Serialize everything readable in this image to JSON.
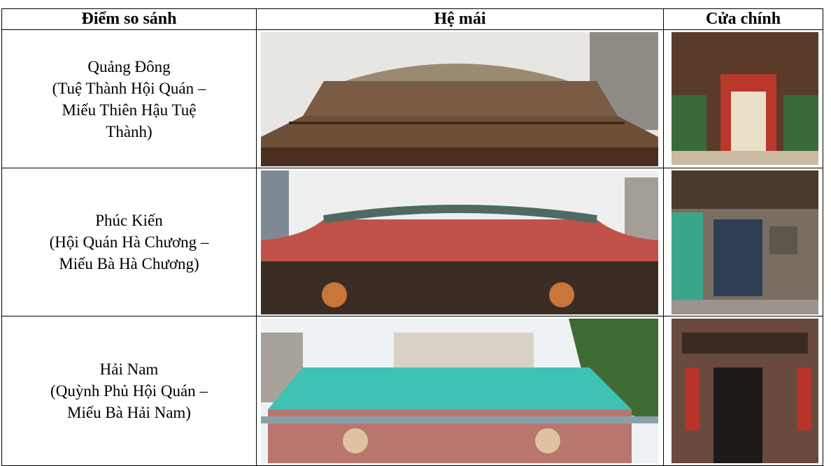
{
  "table": {
    "header": [
      "Điểm so sánh",
      "Hệ mái",
      "Cửa chính"
    ],
    "rows": [
      {
        "label": [
          "Quảng Đông",
          "(Tuệ Thành Hội Quán –",
          "Miếu Thiên Hậu Tuệ",
          "Thành)"
        ]
      },
      {
        "label": [
          "Phúc Kiến",
          "(Hội Quán Hà Chương –",
          "Miếu Bà Hà Chương)"
        ]
      },
      {
        "label": [
          "Hải Nam",
          "(Quỳnh Phủ Hội Quán –",
          "Miếu Bà Hải Nam)"
        ]
      }
    ]
  }
}
